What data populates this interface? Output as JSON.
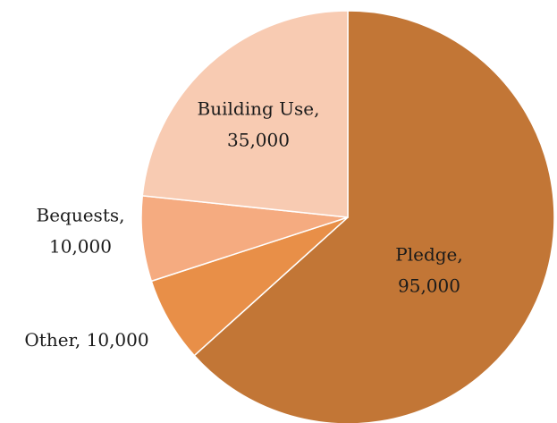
{
  "chart_data": {
    "type": "pie",
    "start": "12 o'clock",
    "direction": "clockwise",
    "slices": [
      {
        "name": "Pledge",
        "value": 95000,
        "label_line1": "Pledge,",
        "label_line2": "95,000",
        "color": "#C27636"
      },
      {
        "name": "Other",
        "value": 10000,
        "label_line1": "Other, 10,000",
        "label_line2": "",
        "color": "#E88F48"
      },
      {
        "name": "Bequests",
        "value": 10000,
        "label_line1": "Bequests,",
        "label_line2": "10,000",
        "color": "#F5AB80"
      },
      {
        "name": "Building Use",
        "value": 35000,
        "label_line1": "Building Use,",
        "label_line2": "35,000",
        "color": "#F8CBB2"
      }
    ]
  }
}
